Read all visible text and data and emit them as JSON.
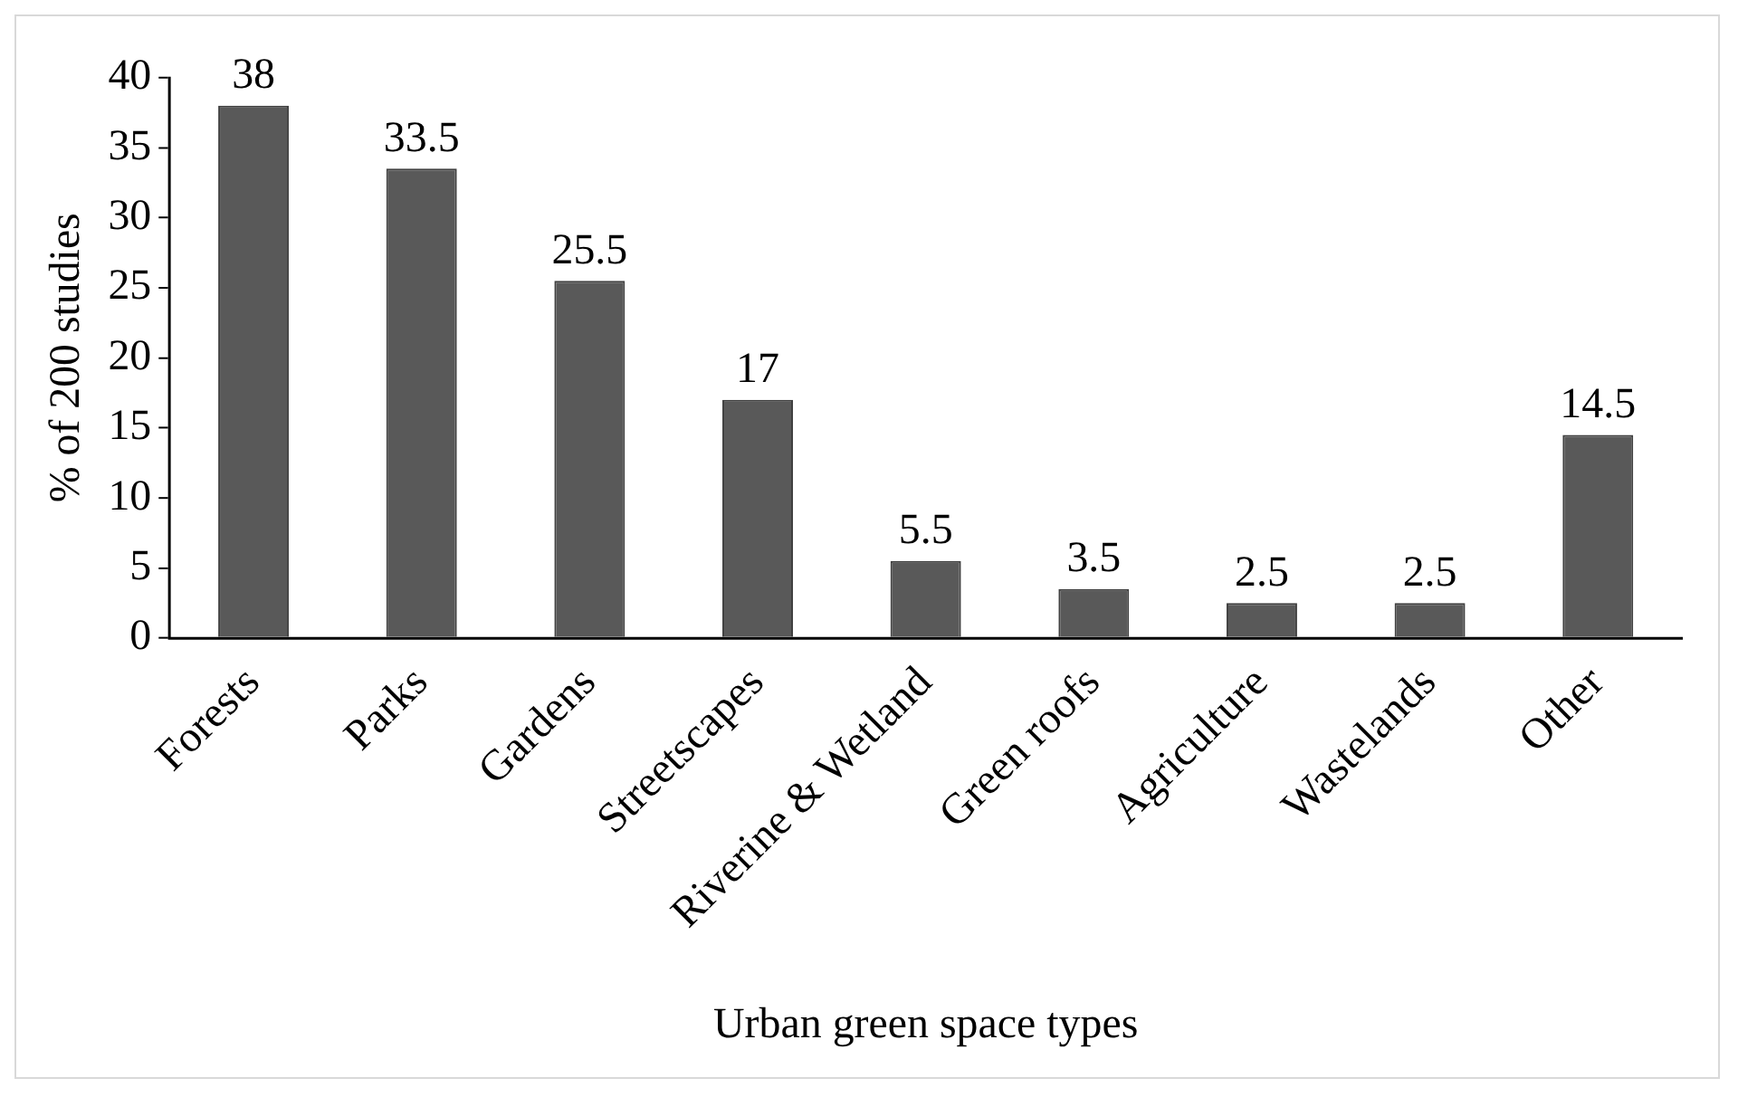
{
  "chart_data": {
    "type": "bar",
    "categories": [
      "Forests",
      "Parks",
      "Gardens",
      "Streetscapes",
      "Riverine & Wetland",
      "Green roofs",
      "Agriculture",
      "Wastelands",
      "Other"
    ],
    "values": [
      38,
      33.5,
      25.5,
      17,
      5.5,
      3.5,
      2.5,
      2.5,
      14.5
    ],
    "color": "#595959",
    "xlabel": "Urban green space types",
    "ylabel": "% of 200 studies",
    "ylim": [
      0,
      40
    ],
    "yticks": [
      0,
      5,
      10,
      15,
      20,
      25,
      30,
      35,
      40
    ],
    "data_labels": true
  }
}
